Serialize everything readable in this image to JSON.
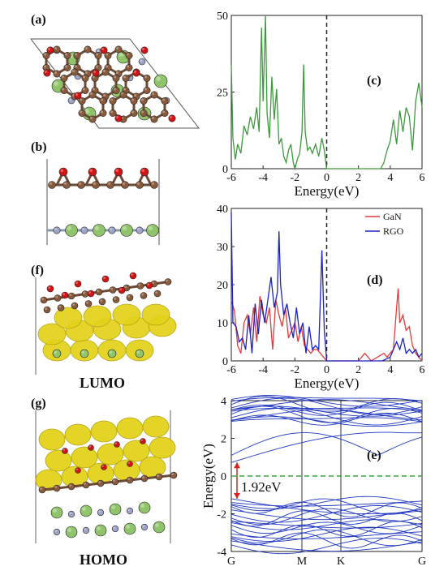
{
  "panels": {
    "a": "(a)",
    "b": "(b)",
    "c": "(c)",
    "d": "(d)",
    "e": "(e)",
    "f": "(f)",
    "g": "(g)"
  },
  "structure_labels": {
    "lumo": "LUMO",
    "homo": "HOMO"
  },
  "colors": {
    "carbon": "#8a5a3c",
    "oxygen": "#d21414",
    "gallium": "#8fc46a",
    "nitrogen": "#9ea3c8",
    "orbital": "#e3d21a",
    "dos_green": "#3c9a3c",
    "gan": "#e23b3b",
    "rgo": "#1b22c4",
    "band": "#2038c0",
    "gap_marker": "#e02020",
    "fermi_dashed": "#3aa73a"
  },
  "chart_data": [
    {
      "type": "line",
      "panel": "(c)",
      "xlabel": "Energy(eV)",
      "xlim": [
        -6,
        6
      ],
      "ylim": [
        0,
        50
      ],
      "xticks": [
        -6,
        -4,
        -2,
        0,
        2,
        4,
        6
      ],
      "yticks": [
        0,
        25,
        50
      ],
      "series": [
        {
          "x": [
            -6,
            -5.9,
            -5.75,
            -5.6,
            -5.4,
            -5.2,
            -5,
            -4.8,
            -4.6,
            -4.4,
            -4.25,
            -4.1,
            -4,
            -3.85,
            -3.75,
            -3.6,
            -3.45,
            -3.3,
            -3.15,
            -3,
            -2.85,
            -2.7,
            -2.55,
            -2.4,
            -2.25,
            -2.1,
            -2,
            -1.85,
            -1.7,
            -1.55,
            -1.45,
            -1.35,
            -1.2,
            -1.05,
            -0.9,
            -0.7,
            -0.5,
            -0.3,
            -0.15,
            0,
            3.4,
            3.6,
            3.8,
            4,
            4.2,
            4.4,
            4.6,
            4.8,
            5,
            5.2,
            5.4,
            5.6,
            5.8,
            6
          ],
          "y": [
            34,
            10,
            3,
            8,
            5,
            14,
            11,
            17,
            13,
            20,
            12,
            46,
            22,
            50,
            18,
            10,
            30,
            16,
            26,
            8,
            10,
            4,
            2,
            6,
            8,
            2,
            0,
            3,
            5,
            12,
            34,
            12,
            6,
            7,
            5,
            8,
            4,
            10,
            6,
            0,
            0,
            2,
            6,
            9,
            16,
            8,
            19,
            12,
            20,
            17,
            6,
            22,
            28,
            20
          ]
        }
      ]
    },
    {
      "type": "line",
      "panel": "(d)",
      "xlabel": "Energy(eV)",
      "xlim": [
        -6,
        6
      ],
      "ylim": [
        0,
        40
      ],
      "xticks": [
        -6,
        -4,
        -2,
        0,
        2,
        4,
        6
      ],
      "yticks": [
        0,
        10,
        20,
        30,
        40
      ],
      "series": [
        {
          "name": "GaN",
          "x": [
            -6,
            -5.8,
            -5.6,
            -5.4,
            -5.2,
            -5,
            -4.8,
            -4.6,
            -4.4,
            -4.2,
            -4,
            -3.8,
            -3.6,
            -3.4,
            -3.2,
            -3,
            -2.8,
            -2.6,
            -2.4,
            -2.2,
            -2,
            -1.8,
            -1.6,
            -1.4,
            -1.2,
            -1,
            -0.8,
            -0.6,
            -0.4,
            -0.2,
            0,
            2,
            2.4,
            2.8,
            3.2,
            3.6,
            3.8,
            4,
            4.2,
            4.4,
            4.5,
            4.6,
            4.8,
            5,
            5.2,
            5.4,
            5.6,
            5.8,
            6
          ],
          "y": [
            16,
            13,
            4,
            2,
            10,
            12,
            7,
            14,
            5,
            17,
            12,
            10,
            14,
            3,
            16,
            12,
            9,
            14,
            6,
            8,
            10,
            5,
            9,
            4,
            3,
            2,
            3,
            3,
            2,
            1,
            0,
            0,
            2,
            0,
            1,
            2,
            1,
            2,
            3,
            14,
            19,
            10,
            12,
            8,
            9,
            4,
            2,
            1,
            0
          ]
        },
        {
          "name": "RGO",
          "x": [
            -6,
            -5.9,
            -5.7,
            -5.5,
            -5.3,
            -5.1,
            -4.9,
            -4.7,
            -4.5,
            -4.3,
            -4.1,
            -3.9,
            -3.7,
            -3.5,
            -3.3,
            -3.1,
            -3,
            -2.9,
            -2.7,
            -2.5,
            -2.3,
            -2.1,
            -1.9,
            -1.7,
            -1.5,
            -1.3,
            -1.1,
            -0.9,
            -0.7,
            -0.5,
            -0.3,
            -0.15,
            0,
            3.5,
            4,
            4.2,
            4.4,
            4.6,
            4.8,
            5,
            5.2,
            5.4,
            5.6,
            5.8,
            6
          ],
          "y": [
            39,
            10,
            9,
            5,
            6,
            3,
            12,
            2,
            15,
            7,
            16,
            10,
            16,
            22,
            14,
            18,
            34,
            20,
            12,
            15,
            10,
            6,
            14,
            7,
            10,
            2,
            9,
            3,
            4,
            3,
            29,
            8,
            0,
            0,
            1,
            3,
            5,
            3,
            6,
            2,
            3,
            2,
            3,
            1,
            2
          ]
        }
      ]
    },
    {
      "type": "line",
      "panel": "(e)",
      "ylabel": "Energy(eV)",
      "ylim": [
        -4,
        4
      ],
      "yticks": [
        -4,
        -2,
        0,
        2,
        4
      ],
      "kpoints": [
        "G",
        "M",
        "K",
        "G"
      ],
      "gap_label": "1.92eV",
      "vbm": -1.2,
      "cbm": 0.72
    }
  ]
}
